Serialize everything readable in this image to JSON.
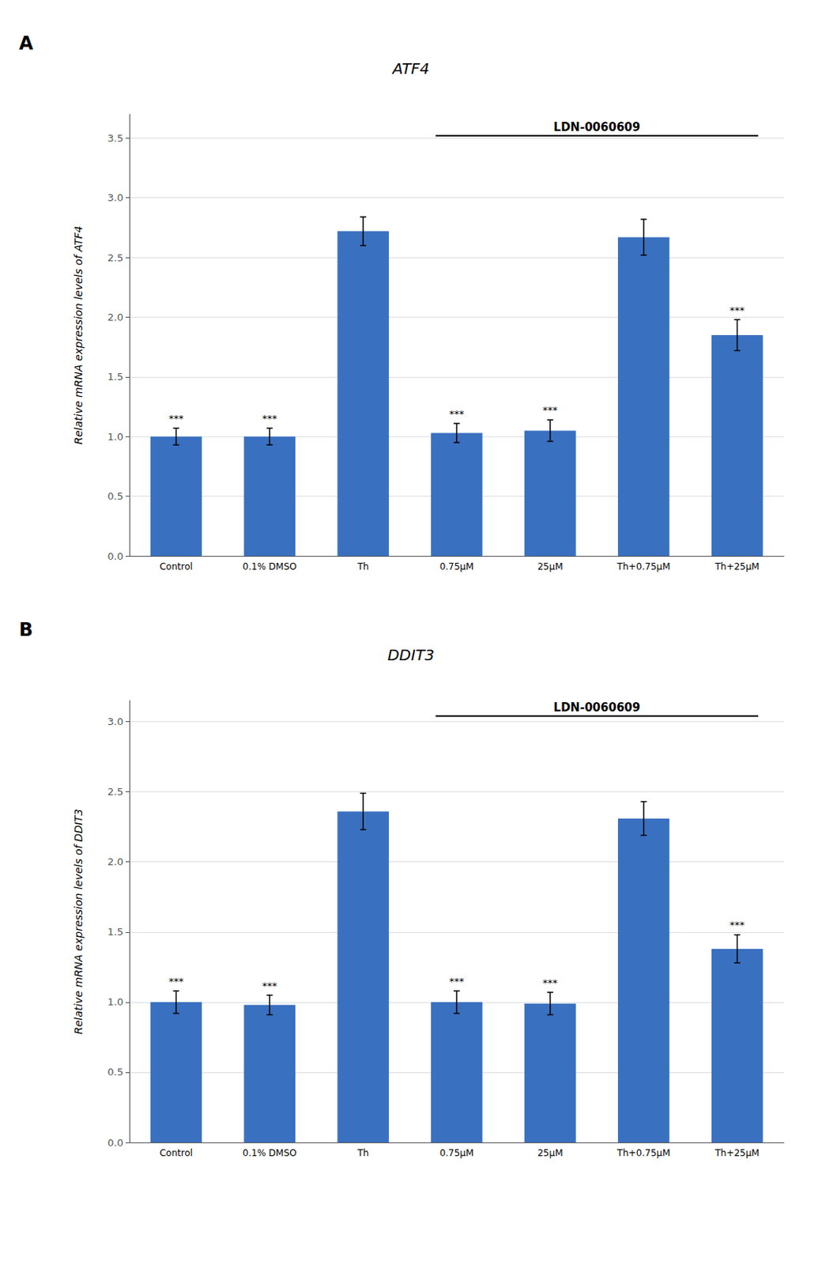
{
  "chart_data": [
    {
      "type": "bar",
      "panel_label": "A",
      "title": "ATF4",
      "ylabel": "Relative mRNA expression levels of ATF4",
      "categories": [
        "Control",
        "0.1% DMSO",
        "Th",
        "0.75μM",
        "25μM",
        "Th+0.75μM",
        "Th+25μM"
      ],
      "values": [
        1.0,
        1.0,
        2.72,
        1.03,
        1.05,
        2.67,
        1.85
      ],
      "errors": [
        0.07,
        0.07,
        0.12,
        0.08,
        0.09,
        0.15,
        0.13
      ],
      "sig_labels": [
        "***",
        "***",
        null,
        "***",
        "***",
        null,
        "***"
      ],
      "annotations": [
        {
          "text": "LDN-0060609",
          "from": "0.75μM",
          "to": "Th+25μM",
          "y": 3.52
        }
      ],
      "color": "#3A70C0",
      "ylim": [
        0,
        3.7
      ],
      "yticks": [
        {
          "value": 0,
          "label": "0.0"
        },
        0.5,
        {
          "value": 1,
          "label": "1.0"
        },
        1.5,
        {
          "value": 2,
          "label": "2.0"
        },
        2.5,
        {
          "value": 3,
          "label": "3.0"
        },
        3.5
      ],
      "grid": true
    },
    {
      "type": "bar",
      "panel_label": "B",
      "title": "DDIT3",
      "ylabel": "Relative mRNA expression levels of DDIT3",
      "categories": [
        "Control",
        "0.1% DMSO",
        "Th",
        "0.75μM",
        "25μM",
        "Th+0.75μM",
        "Th+25μM"
      ],
      "values": [
        1.0,
        0.98,
        2.36,
        1.0,
        0.99,
        2.31,
        1.38
      ],
      "errors": [
        0.08,
        0.07,
        0.13,
        0.08,
        0.08,
        0.12,
        0.1
      ],
      "sig_labels": [
        "***",
        "***",
        null,
        "***",
        "***",
        null,
        "***"
      ],
      "annotations": [
        {
          "text": "LDN-0060609",
          "from": "0.75μM",
          "to": "Th+25μM",
          "y": 3.04
        }
      ],
      "color": "#3A70C0",
      "ylim": [
        0,
        3.15
      ],
      "yticks": [
        {
          "value": 0,
          "label": "0.0"
        },
        0.5,
        {
          "value": 1,
          "label": "1.0"
        },
        1.5,
        {
          "value": 2,
          "label": "2.0"
        },
        2.5,
        {
          "value": 3,
          "label": "3.0"
        }
      ],
      "grid": true
    }
  ]
}
